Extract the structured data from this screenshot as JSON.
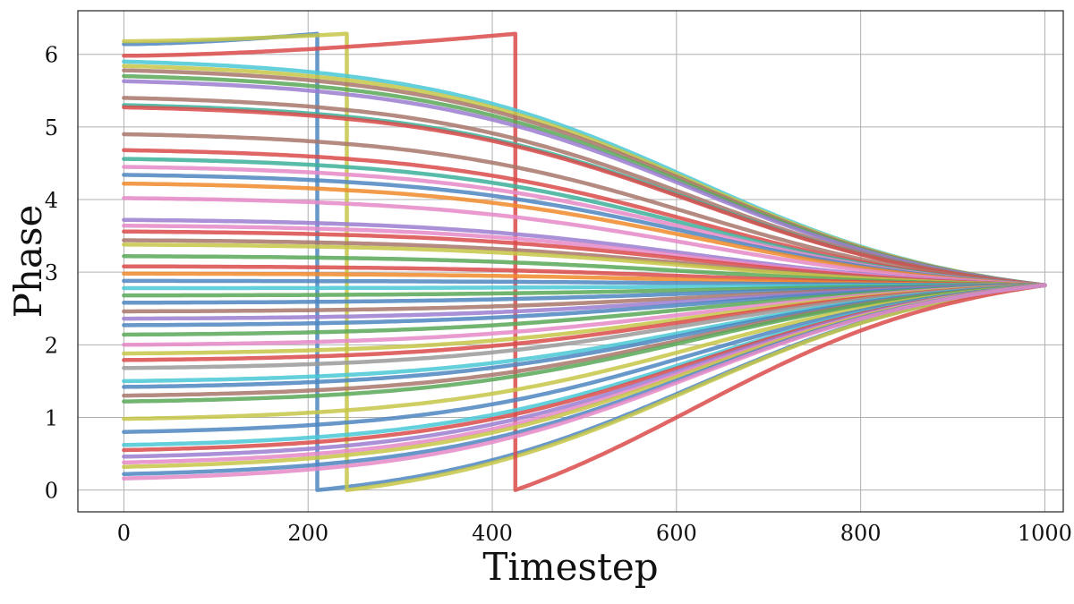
{
  "chart_data": {
    "type": "line",
    "title": "",
    "xlabel": "Timestep",
    "ylabel": "Phase",
    "xlim": [
      -50,
      1020
    ],
    "ylim": [
      -0.3,
      6.6
    ],
    "xticks": [
      0,
      200,
      400,
      600,
      800,
      1000
    ],
    "xtick_labels": [
      "0",
      "200",
      "400",
      "600",
      "800",
      "1000"
    ],
    "yticks": [
      0,
      1,
      2,
      3,
      4,
      5,
      6
    ],
    "ytick_labels": [
      "0",
      "1",
      "2",
      "3",
      "4",
      "5",
      "6"
    ],
    "grid": true,
    "legend": "none",
    "final_value": 2.82,
    "series": [
      {
        "color": "#4c86bf",
        "start": 6.14,
        "wrap_at": 210,
        "decay": 150
      },
      {
        "color": "#c6c648",
        "start": 6.18,
        "wrap_at": 242,
        "decay": 150
      },
      {
        "color": "#db4b4b",
        "start": 5.98,
        "wrap_at": 425,
        "decay": 150
      },
      {
        "color": "#48c8d6",
        "start": 5.9,
        "decay": 150
      },
      {
        "color": "#c6c648",
        "start": 5.84,
        "decay": 150
      },
      {
        "color": "#a8766a",
        "start": 5.78,
        "decay": 150
      },
      {
        "color": "#58a858",
        "start": 5.7,
        "decay": 150
      },
      {
        "color": "#9a7cd0",
        "start": 5.63,
        "decay": 150
      },
      {
        "color": "#a8766a",
        "start": 5.4,
        "decay": 150
      },
      {
        "color": "#3cb09a",
        "start": 5.3,
        "decay": 150
      },
      {
        "color": "#db4b4b",
        "start": 5.27,
        "decay": 150
      },
      {
        "color": "#a8766a",
        "start": 4.9,
        "decay": 150
      },
      {
        "color": "#db4b4b",
        "start": 4.68,
        "decay": 150
      },
      {
        "color": "#3cb09a",
        "start": 4.56,
        "decay": 150
      },
      {
        "color": "#e58ac8",
        "start": 4.45,
        "decay": 150
      },
      {
        "color": "#4c86bf",
        "start": 4.34,
        "decay": 150
      },
      {
        "color": "#f08a2c",
        "start": 4.22,
        "decay": 150
      },
      {
        "color": "#e58ac8",
        "start": 4.02,
        "decay": 150
      },
      {
        "color": "#9a7cd0",
        "start": 3.72,
        "decay": 150
      },
      {
        "color": "#e58ac8",
        "start": 3.64,
        "decay": 150
      },
      {
        "color": "#db4b4b",
        "start": 3.56,
        "decay": 150
      },
      {
        "color": "#a8766a",
        "start": 3.44,
        "decay": 150
      },
      {
        "color": "#c6c648",
        "start": 3.38,
        "decay": 150
      },
      {
        "color": "#58a858",
        "start": 3.22,
        "decay": 150
      },
      {
        "color": "#db4b4b",
        "start": 3.08,
        "decay": 150
      },
      {
        "color": "#f08a2c",
        "start": 2.98,
        "decay": 150
      },
      {
        "color": "#4c86bf",
        "start": 2.88,
        "decay": 150
      },
      {
        "color": "#48c8d6",
        "start": 2.78,
        "decay": 150
      },
      {
        "color": "#58a858",
        "start": 2.68,
        "decay": 150
      },
      {
        "color": "#4c86bf",
        "start": 2.58,
        "decay": 150
      },
      {
        "color": "#a8766a",
        "start": 2.46,
        "decay": 150
      },
      {
        "color": "#9a7cd0",
        "start": 2.36,
        "decay": 150
      },
      {
        "color": "#4c86bf",
        "start": 2.27,
        "decay": 150
      },
      {
        "color": "#58a858",
        "start": 2.14,
        "decay": 150
      },
      {
        "color": "#e58ac8",
        "start": 2.0,
        "decay": 150
      },
      {
        "color": "#c6c648",
        "start": 1.88,
        "decay": 150
      },
      {
        "color": "#db4b4b",
        "start": 1.79,
        "decay": 150
      },
      {
        "color": "#9a9a9a",
        "start": 1.68,
        "decay": 150
      },
      {
        "color": "#48c8d6",
        "start": 1.5,
        "decay": 150
      },
      {
        "color": "#4c86bf",
        "start": 1.42,
        "decay": 150
      },
      {
        "color": "#a8766a",
        "start": 1.3,
        "decay": 150
      },
      {
        "color": "#58a858",
        "start": 1.22,
        "decay": 150
      },
      {
        "color": "#c6c648",
        "start": 0.98,
        "decay": 150
      },
      {
        "color": "#4c86bf",
        "start": 0.8,
        "decay": 150
      },
      {
        "color": "#48c8d6",
        "start": 0.62,
        "decay": 150
      },
      {
        "color": "#db4b4b",
        "start": 0.55,
        "decay": 150
      },
      {
        "color": "#9a7cd0",
        "start": 0.46,
        "decay": 150
      },
      {
        "color": "#e58ac8",
        "start": 0.38,
        "decay": 150
      },
      {
        "color": "#c6c648",
        "start": 0.32,
        "decay": 150
      },
      {
        "color": "#4c86bf",
        "start": 0.22,
        "decay": 150
      },
      {
        "color": "#e58ac8",
        "start": 0.16,
        "decay": 150
      }
    ]
  }
}
